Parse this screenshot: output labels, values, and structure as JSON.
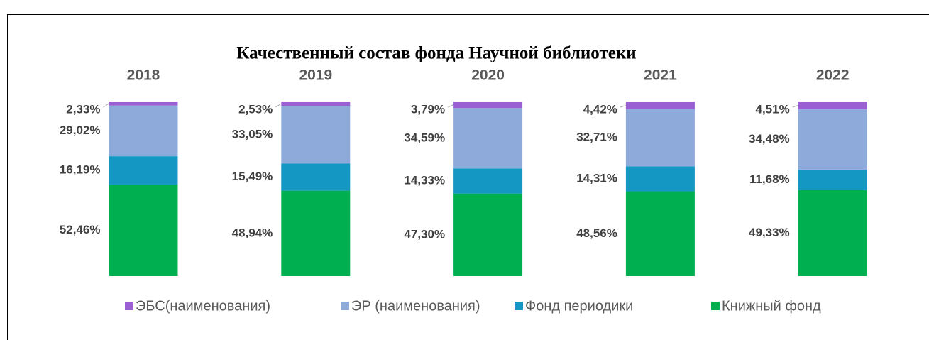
{
  "chart_data": {
    "type": "stacked_bar",
    "title": "Качественный состав фонда Научной библиотеки",
    "categories": [
      "2018",
      "2019",
      "2020",
      "2021",
      "2022"
    ],
    "ylim": [
      0,
      100
    ],
    "series": [
      {
        "name": "ЭБС(наименования)",
        "color": "#9b5fd4",
        "values": [
          2.33,
          2.53,
          3.79,
          4.42,
          4.51
        ],
        "value_labels": [
          "2,33%",
          "2,53%",
          "3,79%",
          "4,42%",
          "4,51%"
        ]
      },
      {
        "name": "ЭР (наименования)",
        "color": "#8eaadb",
        "values": [
          29.02,
          33.05,
          34.59,
          32.71,
          34.48
        ],
        "value_labels": [
          "29,02%",
          "33,05%",
          "34,59%",
          "32,71%",
          "34,48%"
        ]
      },
      {
        "name": "Фонд периодики",
        "color": "#1497c2",
        "values": [
          16.19,
          15.49,
          14.33,
          14.31,
          11.68
        ],
        "value_labels": [
          "16,19%",
          "15,49%",
          "14,33%",
          "14,31%",
          "11,68%"
        ]
      },
      {
        "name": "Книжный фонд",
        "color": "#00b050",
        "values": [
          52.46,
          48.94,
          47.3,
          48.56,
          49.33
        ],
        "value_labels": [
          "52,46%",
          "48,94%",
          "47,30%",
          "48,56%",
          "49,33%"
        ]
      }
    ]
  }
}
